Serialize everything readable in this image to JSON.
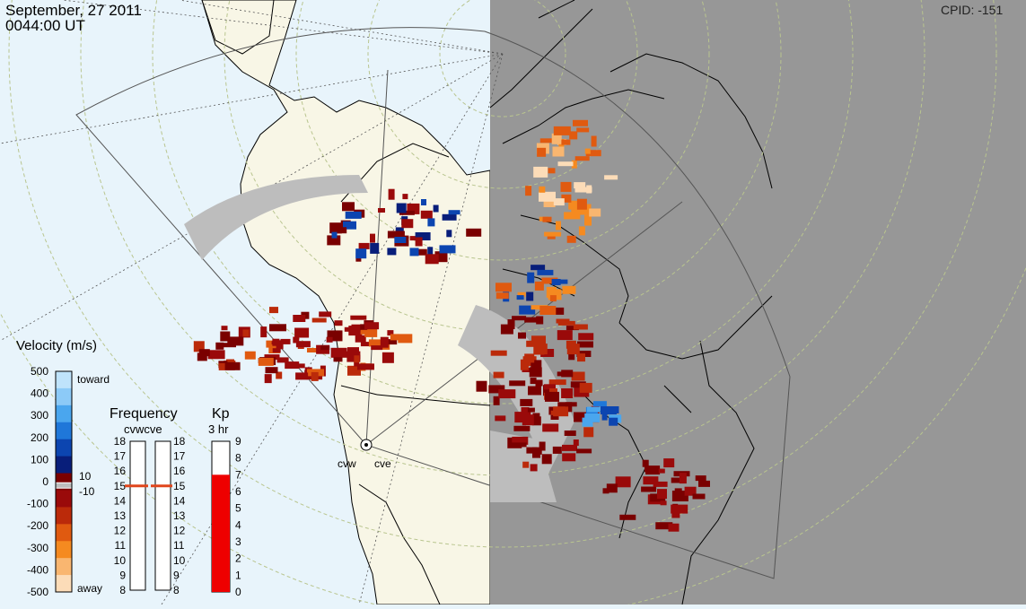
{
  "header": {
    "date": "September, 27 2011",
    "time": "0044:00 UT",
    "cpid": "CPID:  -151"
  },
  "velocity_scale": {
    "title": "Velocity (m/s)",
    "ticks": [
      "500",
      "400",
      "300",
      "200",
      "100",
      "0",
      "-100",
      "-200",
      "-300",
      "-400",
      "-500"
    ],
    "toward_label": "toward",
    "away_label": "away",
    "ground_scatter_upper": "10",
    "ground_scatter_lower": "-10",
    "colors": [
      "#bfe3fb",
      "#8ccaf7",
      "#4aa6ee",
      "#1f77d9",
      "#0c45b0",
      "#081e7a",
      "#7a0000",
      "#9a0a0a",
      "#bb2a0a",
      "#e05a10",
      "#f58a20",
      "#f9b670",
      "#fcdcb8"
    ]
  },
  "frequency": {
    "title": "Frequency",
    "radars": "cvwcve",
    "ticks": [
      "18",
      "17",
      "16",
      "15",
      "14",
      "13",
      "12",
      "11",
      "10",
      "9",
      "8"
    ],
    "cvw_mhz": 15,
    "cve_mhz": 15
  },
  "kp": {
    "title": "Kp",
    "subtitle": "3 hr",
    "ticks": [
      "9",
      "8",
      "7",
      "6",
      "5",
      "4",
      "3",
      "2",
      "1",
      "0"
    ],
    "value": 7
  },
  "radars": {
    "cvw": "cvw",
    "cve": "cve"
  },
  "colors": {
    "land": "#f8f6e6",
    "ocean": "#e8f4fb",
    "night": "#979797",
    "ground_scatter": "#bdbdbd",
    "kp_fill": "#ee0000",
    "freq_marker": "#e0461c"
  }
}
